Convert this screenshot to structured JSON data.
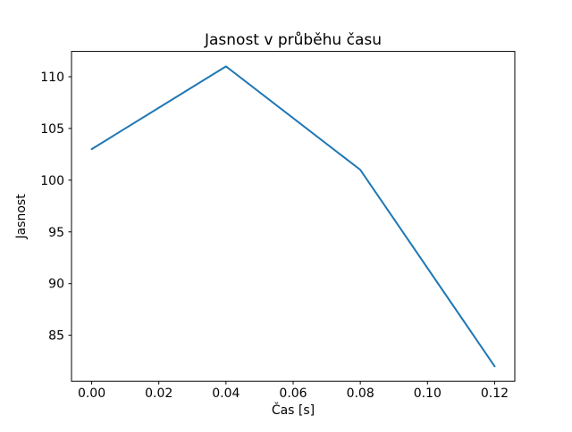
{
  "chart_data": {
    "type": "line",
    "title": "Jasnost v průběhu času",
    "xlabel": "Čas [s]",
    "ylabel": "Jasnost",
    "x": [
      0.0,
      0.04,
      0.08,
      0.12
    ],
    "y": [
      103,
      111,
      101,
      82
    ],
    "series": [
      {
        "name": "Jasnost",
        "x": [
          0.0,
          0.04,
          0.08,
          0.12
        ],
        "values": [
          103,
          111,
          101,
          82
        ]
      }
    ],
    "xticks": [
      0.0,
      0.02,
      0.04,
      0.06,
      0.08,
      0.1,
      0.12
    ],
    "xtick_labels": [
      "0.00",
      "0.02",
      "0.04",
      "0.06",
      "0.08",
      "0.10",
      "0.12"
    ],
    "yticks": [
      85,
      90,
      95,
      100,
      105,
      110
    ],
    "ytick_labels": [
      "85",
      "90",
      "95",
      "100",
      "105",
      "110"
    ],
    "xlim": [
      -0.006,
      0.126
    ],
    "ylim": [
      80.55,
      112.45
    ],
    "line_color": "#1f77b4",
    "axis_color": "#000000",
    "background_color": "#ffffff",
    "grid": false,
    "legend": null
  }
}
